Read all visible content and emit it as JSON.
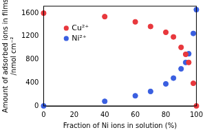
{
  "chart_data": {
    "type": "scatter",
    "xlabel": "Fraction of Ni ions in solution (%)",
    "ylabel": [
      "Amount of adsorbed ions in films",
      "/nmol cm⁻²"
    ],
    "xlim": [
      0,
      100
    ],
    "xticks": [
      0,
      20,
      40,
      60,
      80,
      100
    ],
    "ylim": [
      0,
      1720
    ],
    "yticks": [
      0,
      400,
      800,
      1200,
      1600
    ],
    "grid": false,
    "legend": "upper left",
    "marker": "circle",
    "series": [
      {
        "name": "Cu²⁺",
        "color": "#e8383d",
        "x": [
          0,
          40,
          60,
          70,
          80,
          85,
          90,
          93,
          95,
          98,
          100
        ],
        "values": [
          1600,
          1540,
          1450,
          1370,
          1270,
          1190,
          1010,
          890,
          750,
          390,
          0
        ]
      },
      {
        "name": "Ni²⁺",
        "color": "#3a5fe0",
        "x": [
          0,
          40,
          60,
          70,
          80,
          85,
          90,
          93,
          95,
          98,
          100
        ],
        "values": [
          0,
          80,
          175,
          250,
          380,
          480,
          640,
          750,
          900,
          1250,
          1660
        ]
      }
    ]
  }
}
